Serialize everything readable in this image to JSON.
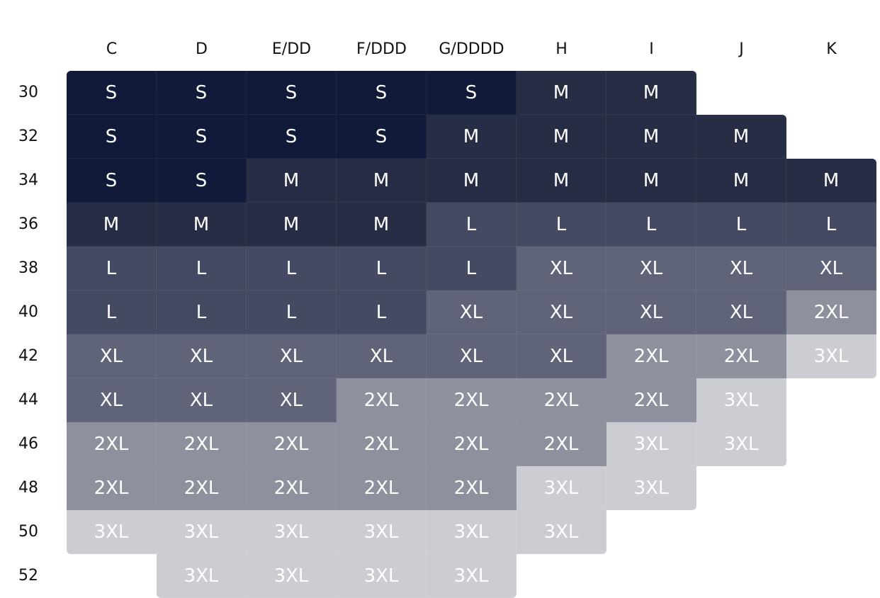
{
  "columns": [
    "C",
    "D",
    "E/DD",
    "F/DDD",
    "G/DDDD",
    "H",
    "I",
    "J",
    "K"
  ],
  "rows": [
    "30",
    "32",
    "34",
    "36",
    "38",
    "40",
    "42",
    "44",
    "46",
    "48",
    "50",
    "52"
  ],
  "sizes": {
    "30": [
      "S",
      "S",
      "S",
      "S",
      "S",
      "M",
      "M",
      "",
      ""
    ],
    "32": [
      "S",
      "S",
      "S",
      "S",
      "M",
      "M",
      "M",
      "M",
      ""
    ],
    "34": [
      "S",
      "S",
      "M",
      "M",
      "M",
      "M",
      "M",
      "M",
      "M"
    ],
    "36": [
      "M",
      "M",
      "M",
      "M",
      "L",
      "L",
      "L",
      "L",
      "L"
    ],
    "38": [
      "L",
      "L",
      "L",
      "L",
      "L",
      "XL",
      "XL",
      "XL",
      "XL"
    ],
    "40": [
      "L",
      "L",
      "L",
      "L",
      "XL",
      "XL",
      "XL",
      "XL",
      "2XL"
    ],
    "42": [
      "XL",
      "XL",
      "XL",
      "XL",
      "XL",
      "XL",
      "2XL",
      "2XL",
      "3XL"
    ],
    "44": [
      "XL",
      "XL",
      "XL",
      "2XL",
      "2XL",
      "2XL",
      "2XL",
      "3XL",
      ""
    ],
    "46": [
      "2XL",
      "2XL",
      "2XL",
      "2XL",
      "2XL",
      "2XL",
      "3XL",
      "3XL",
      ""
    ],
    "48": [
      "2XL",
      "2XL",
      "2XL",
      "2XL",
      "2XL",
      "3XL",
      "3XL",
      "",
      ""
    ],
    "50": [
      "3XL",
      "3XL",
      "3XL",
      "3XL",
      "3XL",
      "3XL",
      "",
      "",
      ""
    ],
    "52": [
      "",
      "3XL",
      "3XL",
      "3XL",
      "3XL",
      "",
      "",
      "",
      ""
    ]
  },
  "size_colors": {
    "S": "#111a38",
    "M": "#272d45",
    "L": "#444a62",
    "XL": "#5f6479",
    "2XL": "#8d909d",
    "3XL": "#ccccd3"
  },
  "text_color": "#ffffff"
}
